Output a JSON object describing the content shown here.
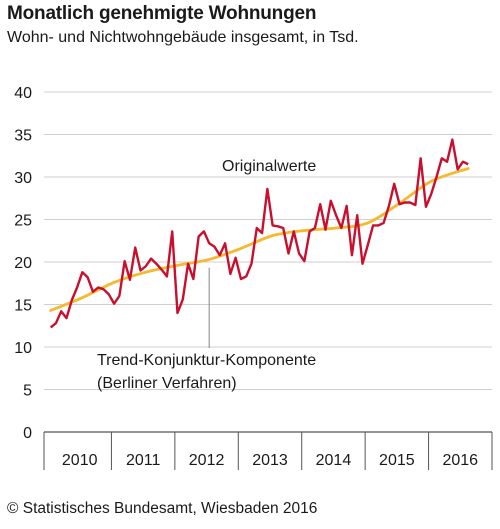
{
  "header": {
    "title": "Monatlich genehmigte Wohnungen",
    "subtitle": "Wohn- und Nichtwohngebäude insgesamt, in Tsd."
  },
  "footer": {
    "source": "© Statistisches Bundesamt, Wiesbaden 2016"
  },
  "colors": {
    "original": "#c8102e",
    "trend": "#f5b82e",
    "grid": "#cfcfcf",
    "axis": "#555555"
  },
  "chart_data": {
    "type": "line",
    "title": "Monatlich genehmigte Wohnungen",
    "subtitle": "Wohn- und Nichtwohngebäude insgesamt, in Tsd.",
    "xlabel": "",
    "ylabel": "",
    "ylim": [
      0,
      40
    ],
    "yticks": [
      "0",
      "5",
      "10",
      "15",
      "20",
      "25",
      "30",
      "35",
      "40"
    ],
    "xlim": [
      "2010-01",
      "2016-12"
    ],
    "year_labels": [
      "2010",
      "2011",
      "2012",
      "2013",
      "2014",
      "2015",
      "2016"
    ],
    "grid": true,
    "legend": "inline labels",
    "annotations": {
      "original_label": "Originalwerte",
      "trend_label_line1": "Trend-Konjunktur-Komponente",
      "trend_label_line2": "(Berliner Verfahren)"
    },
    "series": [
      {
        "name": "Originalwerte",
        "x": [
          "2010-01",
          "2010-02",
          "2010-03",
          "2010-04",
          "2010-05",
          "2010-06",
          "2010-07",
          "2010-08",
          "2010-09",
          "2010-10",
          "2010-11",
          "2010-12",
          "2011-01",
          "2011-02",
          "2011-03",
          "2011-04",
          "2011-05",
          "2011-06",
          "2011-07",
          "2011-08",
          "2011-09",
          "2011-10",
          "2011-11",
          "2011-12",
          "2012-01",
          "2012-02",
          "2012-03",
          "2012-04",
          "2012-05",
          "2012-06",
          "2012-07",
          "2012-08",
          "2012-09",
          "2012-10",
          "2012-11",
          "2012-12",
          "2013-01",
          "2013-02",
          "2013-03",
          "2013-04",
          "2013-05",
          "2013-06",
          "2013-07",
          "2013-08",
          "2013-09",
          "2013-10",
          "2013-11",
          "2013-12",
          "2014-01",
          "2014-02",
          "2014-03",
          "2014-04",
          "2014-05",
          "2014-06",
          "2014-07",
          "2014-08",
          "2014-09",
          "2014-10",
          "2014-11",
          "2014-12",
          "2015-01",
          "2015-02",
          "2015-03",
          "2015-04",
          "2015-05",
          "2015-06",
          "2015-07",
          "2015-08",
          "2015-09",
          "2015-10",
          "2015-11",
          "2015-12",
          "2016-01",
          "2016-02",
          "2016-03",
          "2016-04",
          "2016-05",
          "2016-06",
          "2016-07",
          "2016-08"
        ],
        "values": [
          12.3,
          12.8,
          14.2,
          13.4,
          15.5,
          17.0,
          18.8,
          18.2,
          16.5,
          17.0,
          16.8,
          16.2,
          15.1,
          16.0,
          20.1,
          17.9,
          21.7,
          19.0,
          19.5,
          20.4,
          19.8,
          19.1,
          18.3,
          23.6,
          14.0,
          15.6,
          19.8,
          18.0,
          23.0,
          23.6,
          22.2,
          21.8,
          20.8,
          22.2,
          18.6,
          20.5,
          18.0,
          18.3,
          19.8,
          24.0,
          23.4,
          28.6,
          24.3,
          24.2,
          24.0,
          21.0,
          23.6,
          21.0,
          20.1,
          23.6,
          24.0,
          26.8,
          23.8,
          27.2,
          25.5,
          24.0,
          26.6,
          20.8,
          25.5,
          19.8,
          22.0,
          24.3,
          24.3,
          24.6,
          26.6,
          29.2,
          26.8,
          27.0,
          27.0,
          26.7,
          32.2,
          26.5,
          28.0,
          30.0,
          32.2,
          31.8,
          34.4,
          30.9,
          31.8,
          31.5
        ]
      },
      {
        "name": "Trend-Konjunktur-Komponente",
        "x": [
          "2010-01",
          "2010-07",
          "2011-01",
          "2011-07",
          "2012-01",
          "2012-07",
          "2013-01",
          "2013-07",
          "2014-01",
          "2014-07",
          "2015-01",
          "2015-07",
          "2016-01",
          "2016-08"
        ],
        "values": [
          14.3,
          15.8,
          17.6,
          18.8,
          19.6,
          20.3,
          21.6,
          23.1,
          23.7,
          24.0,
          24.6,
          26.9,
          29.5,
          31.0
        ]
      }
    ]
  }
}
